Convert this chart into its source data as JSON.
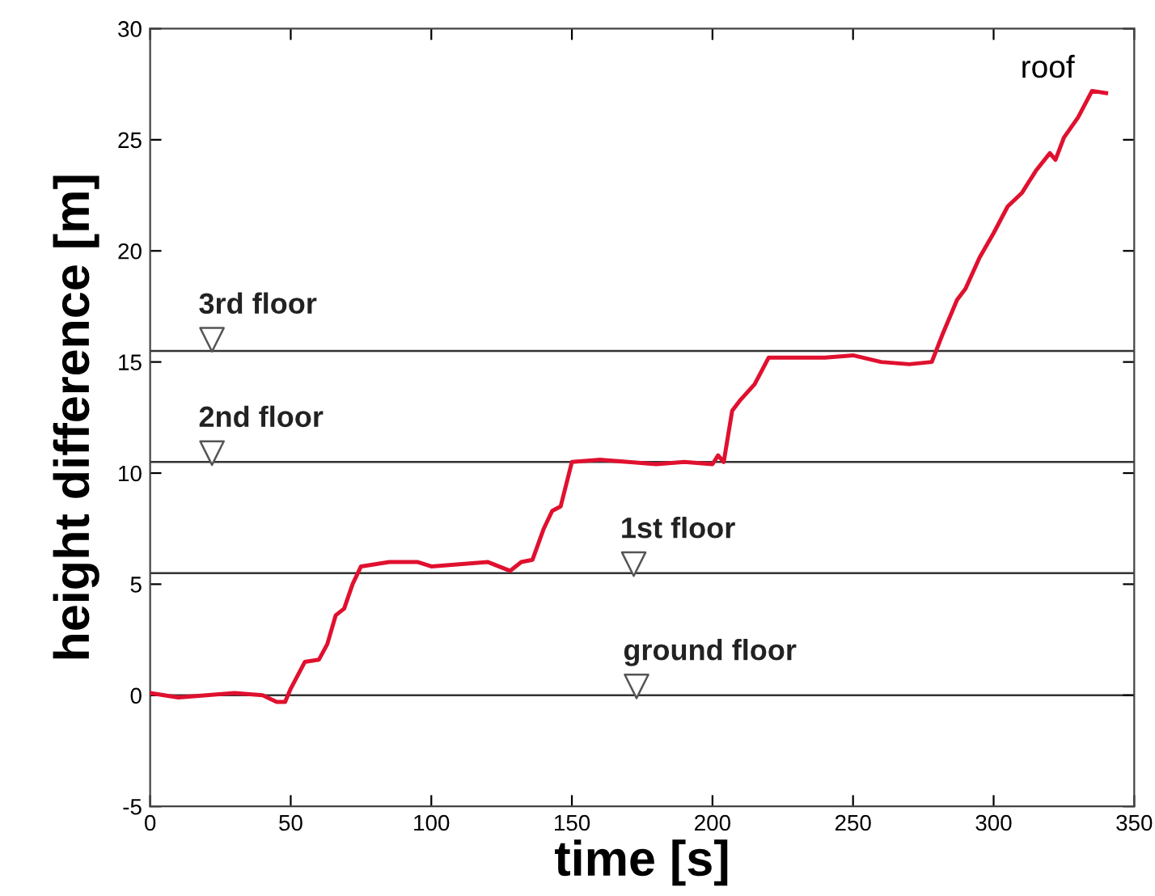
{
  "chart_data": {
    "type": "line",
    "xlabel": "time [s]",
    "ylabel": "height difference [m]",
    "xlim": [
      0,
      350
    ],
    "xticks": [
      0,
      50,
      100,
      150,
      200,
      250,
      300,
      350
    ],
    "ylim": [
      -5,
      30
    ],
    "yticks": [
      -5,
      0,
      5,
      10,
      15,
      20,
      25,
      30
    ],
    "grid": false,
    "legend": false,
    "series": [
      {
        "color": "#e0102f",
        "line_style": "solid",
        "marker": "none",
        "x": [
          0,
          10,
          20,
          30,
          40,
          45,
          48,
          50,
          55,
          60,
          63,
          66,
          69,
          72,
          75,
          85,
          95,
          100,
          110,
          120,
          128,
          132,
          136,
          140,
          143,
          146,
          150,
          160,
          170,
          180,
          190,
          200,
          202,
          204,
          207,
          210,
          215,
          220,
          230,
          240,
          250,
          260,
          270,
          278,
          282,
          287,
          290,
          295,
          300,
          305,
          310,
          315,
          320,
          322,
          325,
          330,
          335,
          340
        ],
        "values": [
          0.1,
          -0.1,
          0,
          0.1,
          0,
          -0.3,
          -0.3,
          0.3,
          1.5,
          1.6,
          2.3,
          3.6,
          3.9,
          5,
          5.8,
          6,
          6,
          5.8,
          5.9,
          6,
          5.6,
          6,
          6.1,
          7.5,
          8.3,
          8.5,
          10.5,
          10.6,
          10.5,
          10.4,
          10.5,
          10.4,
          10.8,
          10.5,
          12.8,
          13.3,
          14,
          15.2,
          15.2,
          15.2,
          15.3,
          15,
          14.9,
          15,
          16.3,
          17.8,
          18.3,
          19.7,
          20.8,
          22,
          22.6,
          23.6,
          24.4,
          24.1,
          25.1,
          26,
          27.2,
          27.1
        ]
      },
      {
        "type": "scatter",
        "color": "#555555",
        "marker": "triangle",
        "x": [
          22,
          22,
          172,
          173
        ],
        "values": [
          16,
          10.9,
          5.9,
          0.4
        ]
      }
    ],
    "ref_lines": [
      {
        "axis": "y",
        "value": 15.5,
        "color": "#333333",
        "line_style": "solid"
      },
      {
        "axis": "y",
        "value": 10.5,
        "color": "#333333",
        "line_style": "solid"
      },
      {
        "axis": "y",
        "value": 5.5,
        "color": "#333333",
        "line_style": "solid"
      },
      {
        "axis": "y",
        "value": 0,
        "color": "#333333",
        "line_style": "solid"
      }
    ],
    "annotations": [
      {
        "text": "3rd floor",
        "x": 22,
        "y": 16
      },
      {
        "text": "2nd floor",
        "x": 22,
        "y": 10.9
      },
      {
        "text": "1st floor",
        "x": 172,
        "y": 5.9
      },
      {
        "text": "ground floor",
        "x": 173,
        "y": 0.4
      },
      {
        "text": "roof",
        "x": 340,
        "y": 27.1
      }
    ]
  }
}
